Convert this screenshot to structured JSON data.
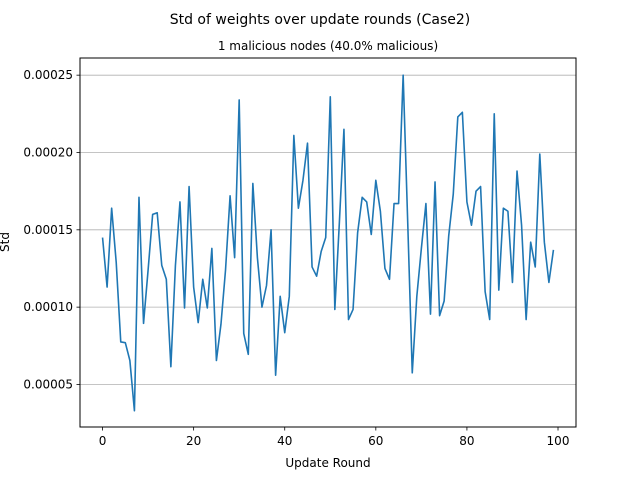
{
  "chart_data": {
    "type": "line",
    "title": "Std of weights over update rounds (Case2)",
    "subtitle": "1 malicious nodes (40.0% malicious)",
    "xlabel": "Update Round",
    "ylabel": "Std",
    "xlim": [
      -4.95,
      103.95
    ],
    "ylim": [
      2.25e-05,
      0.0002611
    ],
    "x_ticks": [
      0,
      20,
      40,
      60,
      80,
      100
    ],
    "y_ticks": [
      5e-05,
      0.0001,
      0.00015,
      0.0002,
      0.00025
    ],
    "y_tick_labels": [
      "0.00005",
      "0.00010",
      "0.00015",
      "0.00020",
      "0.00025"
    ],
    "grid": "horizontal",
    "series": [
      {
        "color": "#1f77b4",
        "x": [
          0,
          1,
          2,
          3,
          4,
          5,
          6,
          7,
          8,
          9,
          10,
          11,
          12,
          13,
          14,
          15,
          16,
          17,
          18,
          19,
          20,
          21,
          22,
          23,
          24,
          25,
          26,
          27,
          28,
          29,
          30,
          31,
          32,
          33,
          34,
          35,
          36,
          37,
          38,
          39,
          40,
          41,
          42,
          43,
          44,
          45,
          46,
          47,
          48,
          49,
          50,
          51,
          52,
          53,
          54,
          55,
          56,
          57,
          58,
          59,
          60,
          61,
          62,
          63,
          64,
          65,
          66,
          67,
          68,
          69,
          70,
          71,
          72,
          73,
          74,
          75,
          76,
          77,
          78,
          79,
          80,
          81,
          82,
          83,
          84,
          85,
          86,
          87,
          88,
          89,
          90,
          91,
          92,
          93,
          94,
          95,
          96,
          97,
          98,
          99
        ],
        "y": [
          0.000145,
          0.000113,
          0.000164,
          0.000129,
          7.75e-05,
          7.7e-05,
          6.55e-05,
          3.3e-05,
          0.000171,
          8.95e-05,
          0.000124,
          0.00016,
          0.000161,
          0.000127,
          0.000118,
          6.15e-05,
          0.000127,
          0.000168,
          9.95e-05,
          0.000178,
          0.000113,
          9e-05,
          0.000118,
          9.95e-05,
          0.000138,
          6.55e-05,
          8.9e-05,
          0.000124,
          0.000172,
          0.000132,
          0.000234,
          8.3e-05,
          6.95e-05,
          0.00018,
          0.000132,
          0.0001,
          0.000114,
          0.00015,
          5.6e-05,
          0.000107,
          8.35e-05,
          0.000107,
          0.000211,
          0.000164,
          0.000182,
          0.000206,
          0.000126,
          0.00012,
          0.000136,
          0.000145,
          0.000236,
          9.85e-05,
          0.000155,
          0.000215,
          9.2e-05,
          9.85e-05,
          0.000148,
          0.000171,
          0.000168,
          0.000147,
          0.000182,
          0.000162,
          0.000125,
          0.000118,
          0.000167,
          0.000167,
          0.00025,
          0.000155,
          5.75e-05,
          0.000107,
          0.000138,
          0.000167,
          9.55e-05,
          0.000181,
          9.45e-05,
          0.000104,
          0.000146,
          0.000173,
          0.000223,
          0.000226,
          0.000168,
          0.000153,
          0.000175,
          0.000178,
          0.00011,
          9.2e-05,
          0.000225,
          0.000111,
          0.000164,
          0.000162,
          0.000116,
          0.000188,
          0.000153,
          9.2e-05,
          0.000142,
          0.000126,
          0.000199,
          0.000142,
          0.000116,
          0.000137
        ]
      }
    ]
  }
}
